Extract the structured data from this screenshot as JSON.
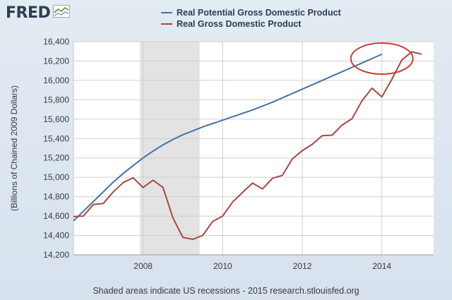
{
  "header": {
    "logo_text": "FRED",
    "logo_icon": "line-chart-icon"
  },
  "legend": [
    {
      "label": "Real Potential Gross Domestic Product",
      "color": "#4572a7"
    },
    {
      "label": "Real Gross Domestic Product",
      "color": "#aa4643"
    }
  ],
  "footer": "Shaded areas indicate US recessions - 2015 research.stlouisfed.org",
  "chart_data": {
    "type": "line",
    "title": "",
    "xlabel": "",
    "ylabel": "(Billions of Chained 2009 Dollars)",
    "xlim": [
      2006.25,
      2015.3
    ],
    "ylim": [
      14200,
      16400
    ],
    "x_ticks": [
      {
        "value": 2008,
        "label": "2008"
      },
      {
        "value": 2010,
        "label": "2010"
      },
      {
        "value": 2012,
        "label": "2012"
      },
      {
        "value": 2014,
        "label": "2014"
      }
    ],
    "y_ticks": [
      {
        "value": 14200,
        "label": "14,200"
      },
      {
        "value": 14400,
        "label": "14,400"
      },
      {
        "value": 14600,
        "label": "14,600"
      },
      {
        "value": 14800,
        "label": "14,800"
      },
      {
        "value": 15000,
        "label": "15,000"
      },
      {
        "value": 15200,
        "label": "15,200"
      },
      {
        "value": 15400,
        "label": "15,400"
      },
      {
        "value": 15600,
        "label": "15,600"
      },
      {
        "value": 15800,
        "label": "15,800"
      },
      {
        "value": 16000,
        "label": "16,000"
      },
      {
        "value": 16200,
        "label": "16,200"
      },
      {
        "value": 16400,
        "label": "16,400"
      }
    ],
    "grid": true,
    "recession": {
      "start": 2007.92,
      "end": 2009.42,
      "color": "#e3e3e3"
    },
    "highlight_circle": {
      "cx": 2014.0,
      "cy": 16225,
      "rx": 0.78,
      "ry": 160,
      "color": "#d13a3a"
    },
    "series": [
      {
        "name": "Real Potential Gross Domestic Product",
        "color": "#4572a7",
        "x": [
          2006.25,
          2006.5,
          2006.75,
          2007.0,
          2007.25,
          2007.5,
          2007.75,
          2008.0,
          2008.25,
          2008.5,
          2008.75,
          2009.0,
          2009.25,
          2009.5,
          2009.75,
          2010.0,
          2010.25,
          2010.5,
          2010.75,
          2011.0,
          2011.25,
          2011.5,
          2011.75,
          2012.0,
          2012.25,
          2012.5,
          2012.75,
          2013.0,
          2013.25,
          2013.5,
          2013.75,
          2014.0
        ],
        "y": [
          14550,
          14650,
          14750,
          14850,
          14950,
          15040,
          15120,
          15200,
          15270,
          15335,
          15390,
          15440,
          15480,
          15520,
          15555,
          15590,
          15625,
          15660,
          15695,
          15735,
          15775,
          15820,
          15865,
          15910,
          15955,
          16000,
          16045,
          16090,
          16135,
          16180,
          16225,
          16270
        ]
      },
      {
        "name": "Real Gross Domestic Product",
        "color": "#aa4643",
        "x": [
          2006.25,
          2006.5,
          2006.75,
          2007.0,
          2007.25,
          2007.5,
          2007.75,
          2008.0,
          2008.25,
          2008.5,
          2008.75,
          2009.0,
          2009.25,
          2009.5,
          2009.75,
          2010.0,
          2010.25,
          2010.5,
          2010.75,
          2011.0,
          2011.25,
          2011.5,
          2011.75,
          2012.0,
          2012.25,
          2012.5,
          2012.75,
          2013.0,
          2013.25,
          2013.5,
          2013.75,
          2014.0,
          2014.25,
          2014.5,
          2014.75,
          2015.0
        ],
        "y": [
          14595,
          14600,
          14720,
          14730,
          14850,
          14945,
          14995,
          14895,
          14970,
          14895,
          14580,
          14380,
          14360,
          14400,
          14545,
          14600,
          14745,
          14845,
          14940,
          14880,
          14990,
          15020,
          15190,
          15275,
          15340,
          15430,
          15435,
          15540,
          15605,
          15790,
          15920,
          15830,
          16010,
          16210,
          16295,
          16270
        ]
      }
    ]
  }
}
